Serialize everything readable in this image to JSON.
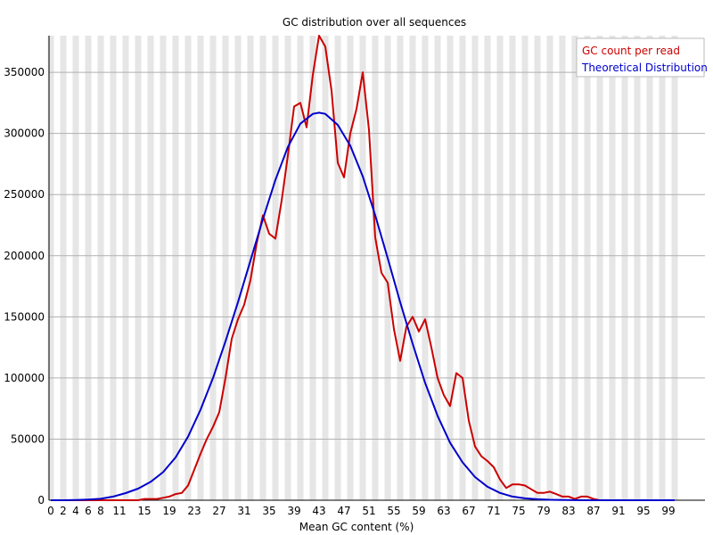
{
  "chart_data": {
    "type": "line",
    "title": "GC distribution over all sequences",
    "xlabel": "Mean GC content (%)",
    "ylabel": "",
    "xlim": [
      0,
      100
    ],
    "ylim": [
      0,
      380000
    ],
    "x_tick_labels": [
      "0",
      "2",
      "4",
      "6",
      "8",
      "11",
      "15",
      "19",
      "23",
      "27",
      "31",
      "35",
      "39",
      "43",
      "47",
      "51",
      "55",
      "59",
      "63",
      "67",
      "71",
      "75",
      "79",
      "83",
      "87",
      "91",
      "95",
      "99"
    ],
    "y_tick_labels": [
      "0",
      "50000",
      "100000",
      "150000",
      "200000",
      "250000",
      "300000",
      "350000"
    ],
    "grid": "alternating vertical bands",
    "legend_position": "top-right",
    "series": [
      {
        "name": "GC count per read",
        "color": "#cc0000",
        "x": [
          0,
          1,
          2,
          3,
          4,
          5,
          6,
          7,
          8,
          9,
          10,
          11,
          12,
          13,
          14,
          15,
          16,
          17,
          18,
          19,
          20,
          21,
          22,
          23,
          24,
          25,
          26,
          27,
          28,
          29,
          30,
          31,
          32,
          33,
          34,
          35,
          36,
          37,
          38,
          39,
          40,
          41,
          42,
          43,
          44,
          45,
          46,
          47,
          48,
          49,
          50,
          51,
          52,
          53,
          54,
          55,
          56,
          57,
          58,
          59,
          60,
          61,
          62,
          63,
          64,
          65,
          66,
          67,
          68,
          69,
          70,
          71,
          72,
          73,
          74,
          75,
          76,
          77,
          78,
          79,
          80,
          81,
          82,
          83,
          84,
          85,
          86,
          87,
          88,
          89,
          90,
          91,
          92,
          93,
          94,
          95,
          96,
          97,
          98,
          99,
          100
        ],
        "values": [
          0,
          0,
          0,
          0,
          0,
          0,
          0,
          0,
          0,
          0,
          0,
          0,
          0,
          0,
          0,
          1000,
          1000,
          1000,
          2000,
          3000,
          5000,
          6000,
          12000,
          25000,
          38000,
          50000,
          60000,
          72000,
          100000,
          132000,
          148000,
          160000,
          180000,
          210000,
          233000,
          218000,
          214000,
          245000,
          282000,
          322000,
          325000,
          305000,
          348000,
          380000,
          371000,
          335000,
          276000,
          264000,
          300000,
          320000,
          350000,
          303000,
          215000,
          186000,
          178000,
          140000,
          114000,
          142000,
          150000,
          138000,
          148000,
          125000,
          100000,
          86000,
          77000,
          104000,
          100000,
          65000,
          44000,
          36000,
          32000,
          27000,
          17000,
          10000,
          13000,
          13000,
          12000,
          9000,
          6000,
          6000,
          7000,
          5000,
          3000,
          3000,
          1000,
          3000,
          3000,
          1000,
          0,
          0,
          0,
          0,
          0,
          0,
          0,
          0,
          0,
          0,
          0,
          0,
          0
        ]
      },
      {
        "name": "Theoretical Distribution",
        "color": "#0000cc",
        "x": [
          0,
          2,
          4,
          6,
          8,
          10,
          12,
          14,
          16,
          18,
          20,
          22,
          24,
          26,
          28,
          30,
          32,
          34,
          36,
          38,
          40,
          42,
          43,
          44,
          46,
          48,
          50,
          52,
          54,
          56,
          58,
          60,
          62,
          64,
          66,
          68,
          70,
          72,
          74,
          76,
          78,
          80,
          82,
          84,
          86,
          88,
          90,
          94,
          100
        ],
        "values": [
          0,
          0,
          200,
          600,
          1200,
          3000,
          5800,
          9500,
          15000,
          23000,
          35000,
          52000,
          74000,
          100000,
          130000,
          162000,
          196000,
          230000,
          262000,
          289000,
          308000,
          316000,
          317000,
          316000,
          307000,
          290000,
          265000,
          233000,
          198000,
          162000,
          128000,
          96000,
          69000,
          47000,
          31000,
          19000,
          11000,
          6000,
          3000,
          1500,
          800,
          400,
          200,
          100,
          0,
          0,
          0,
          0,
          0
        ]
      }
    ]
  }
}
